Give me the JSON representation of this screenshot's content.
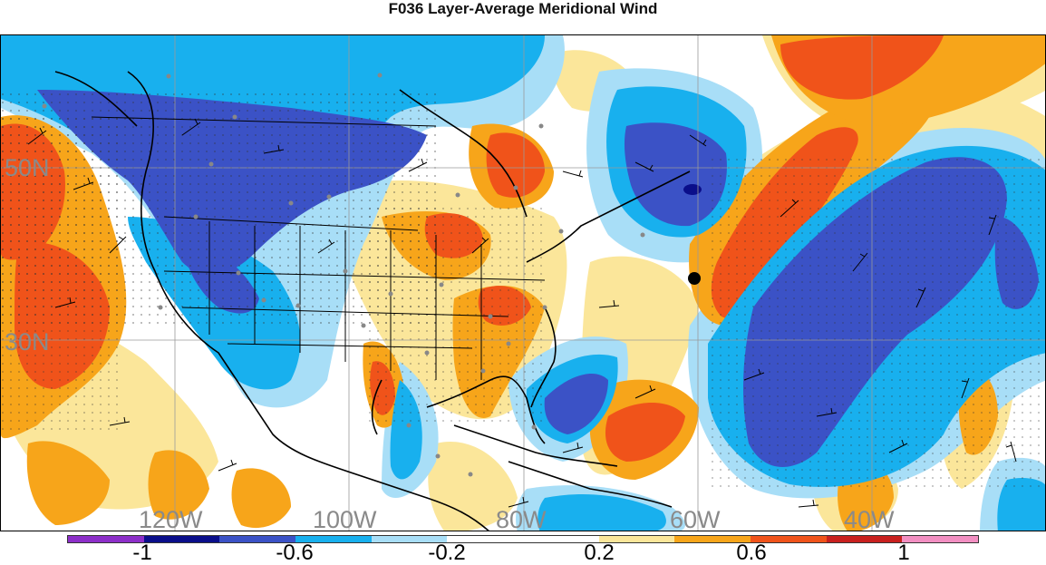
{
  "title": "F036 Layer-Average Meridional Wind",
  "lat_labels": [
    "50N",
    "30N"
  ],
  "lon_labels": [
    "120W",
    "100W",
    "80W",
    "60W",
    "40W"
  ],
  "colorbar": {
    "colors": [
      "#8d2fc9",
      "#0a0e8a",
      "#3b52c6",
      "#18b0ee",
      "#a8def7",
      "#ffffff",
      "#ffffff",
      "#fbe69a",
      "#f7a51a",
      "#f0531a",
      "#c8201e",
      "#f28fc2"
    ],
    "labels": [
      "-1",
      "-0.6",
      "-0.2",
      "0.2",
      "0.6",
      "1"
    ]
  },
  "marker": {
    "name": "black-dot-marker"
  }
}
